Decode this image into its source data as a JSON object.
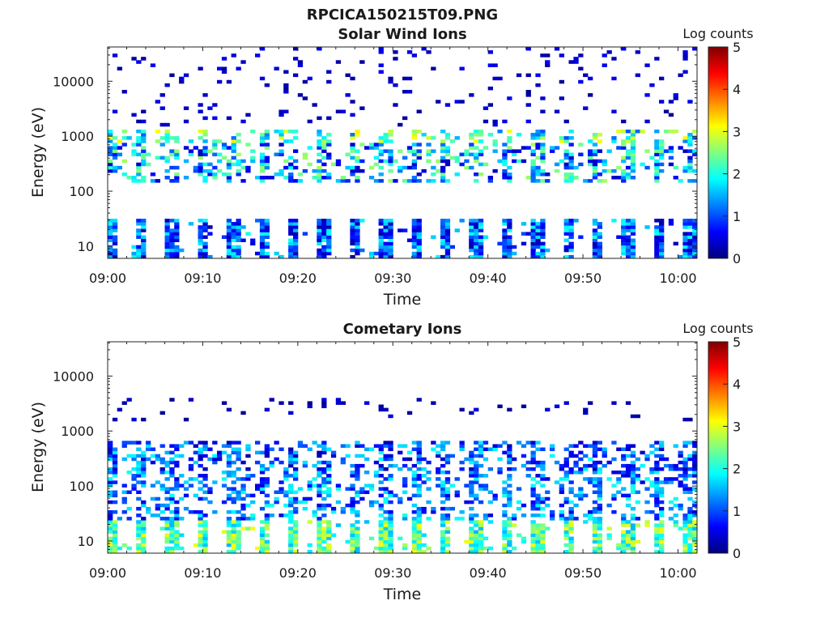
{
  "page_title": "RPCICA150215T09.PNG",
  "chart_data": [
    {
      "type": "heatmap",
      "title": "Solar Wind Ions",
      "xlabel": "Time",
      "ylabel": "Energy (eV)",
      "x_ticks": [
        "09:00",
        "09:10",
        "09:20",
        "09:30",
        "09:40",
        "09:50",
        "10:00"
      ],
      "x_range_minutes": [
        0,
        62
      ],
      "y_scale": "log",
      "y_ticks": [
        "10",
        "100",
        "1000",
        "10000"
      ],
      "y_tick_values": [
        10,
        100,
        1000,
        10000
      ],
      "y_range_eV": [
        6,
        42000
      ],
      "colorbar": {
        "label": "Log counts",
        "ticks": [
          "0",
          "1",
          "2",
          "3",
          "4",
          "5"
        ],
        "range": [
          0,
          5
        ],
        "colormap": "jet"
      },
      "scan_period_minutes": 3.2,
      "bands": [
        {
          "energy_eV": [
            6,
            30
          ],
          "level_range": [
            0.2,
            2.0
          ],
          "pattern": "periodic vertical stripes every scan"
        },
        {
          "energy_eV": [
            150,
            800
          ],
          "level_range": [
            0.3,
            2.7
          ],
          "pattern": "intermittent patches, strongest ~300-500 eV"
        },
        {
          "energy_eV": [
            800,
            1300
          ],
          "level_range": [
            1.0,
            3.2
          ],
          "pattern": "thin bright line near 1000 eV"
        },
        {
          "energy_eV": [
            1500,
            42000
          ],
          "level_range": [
            0.1,
            0.6
          ],
          "pattern": "sparse background noise"
        }
      ]
    },
    {
      "type": "heatmap",
      "title": "Cometary Ions",
      "xlabel": "Time",
      "ylabel": "Energy (eV)",
      "x_ticks": [
        "09:00",
        "09:10",
        "09:20",
        "09:30",
        "09:40",
        "09:50",
        "10:00"
      ],
      "x_range_minutes": [
        0,
        62
      ],
      "y_scale": "log",
      "y_ticks": [
        "10",
        "100",
        "1000",
        "10000"
      ],
      "y_tick_values": [
        10,
        100,
        1000,
        10000
      ],
      "y_range_eV": [
        6,
        42000
      ],
      "colorbar": {
        "label": "Log counts",
        "ticks": [
          "0",
          "1",
          "2",
          "3",
          "4",
          "5"
        ],
        "range": [
          0,
          5
        ],
        "colormap": "jet"
      },
      "scan_period_minutes": 3.2,
      "bands": [
        {
          "energy_eV": [
            6,
            25
          ],
          "level_range": [
            1.5,
            3.1
          ],
          "pattern": "bright periodic stripes (green-yellow)"
        },
        {
          "energy_eV": [
            25,
            200
          ],
          "level_range": [
            0.4,
            2.0
          ],
          "pattern": "dense blue-cyan patches"
        },
        {
          "energy_eV": [
            200,
            700
          ],
          "level_range": [
            0.2,
            1.9
          ],
          "pattern": "moderate patches, brighter near 09:55"
        },
        {
          "energy_eV": [
            1500,
            4000
          ],
          "level_range": [
            0.1,
            0.5
          ],
          "pattern": "sparse background"
        }
      ]
    }
  ]
}
